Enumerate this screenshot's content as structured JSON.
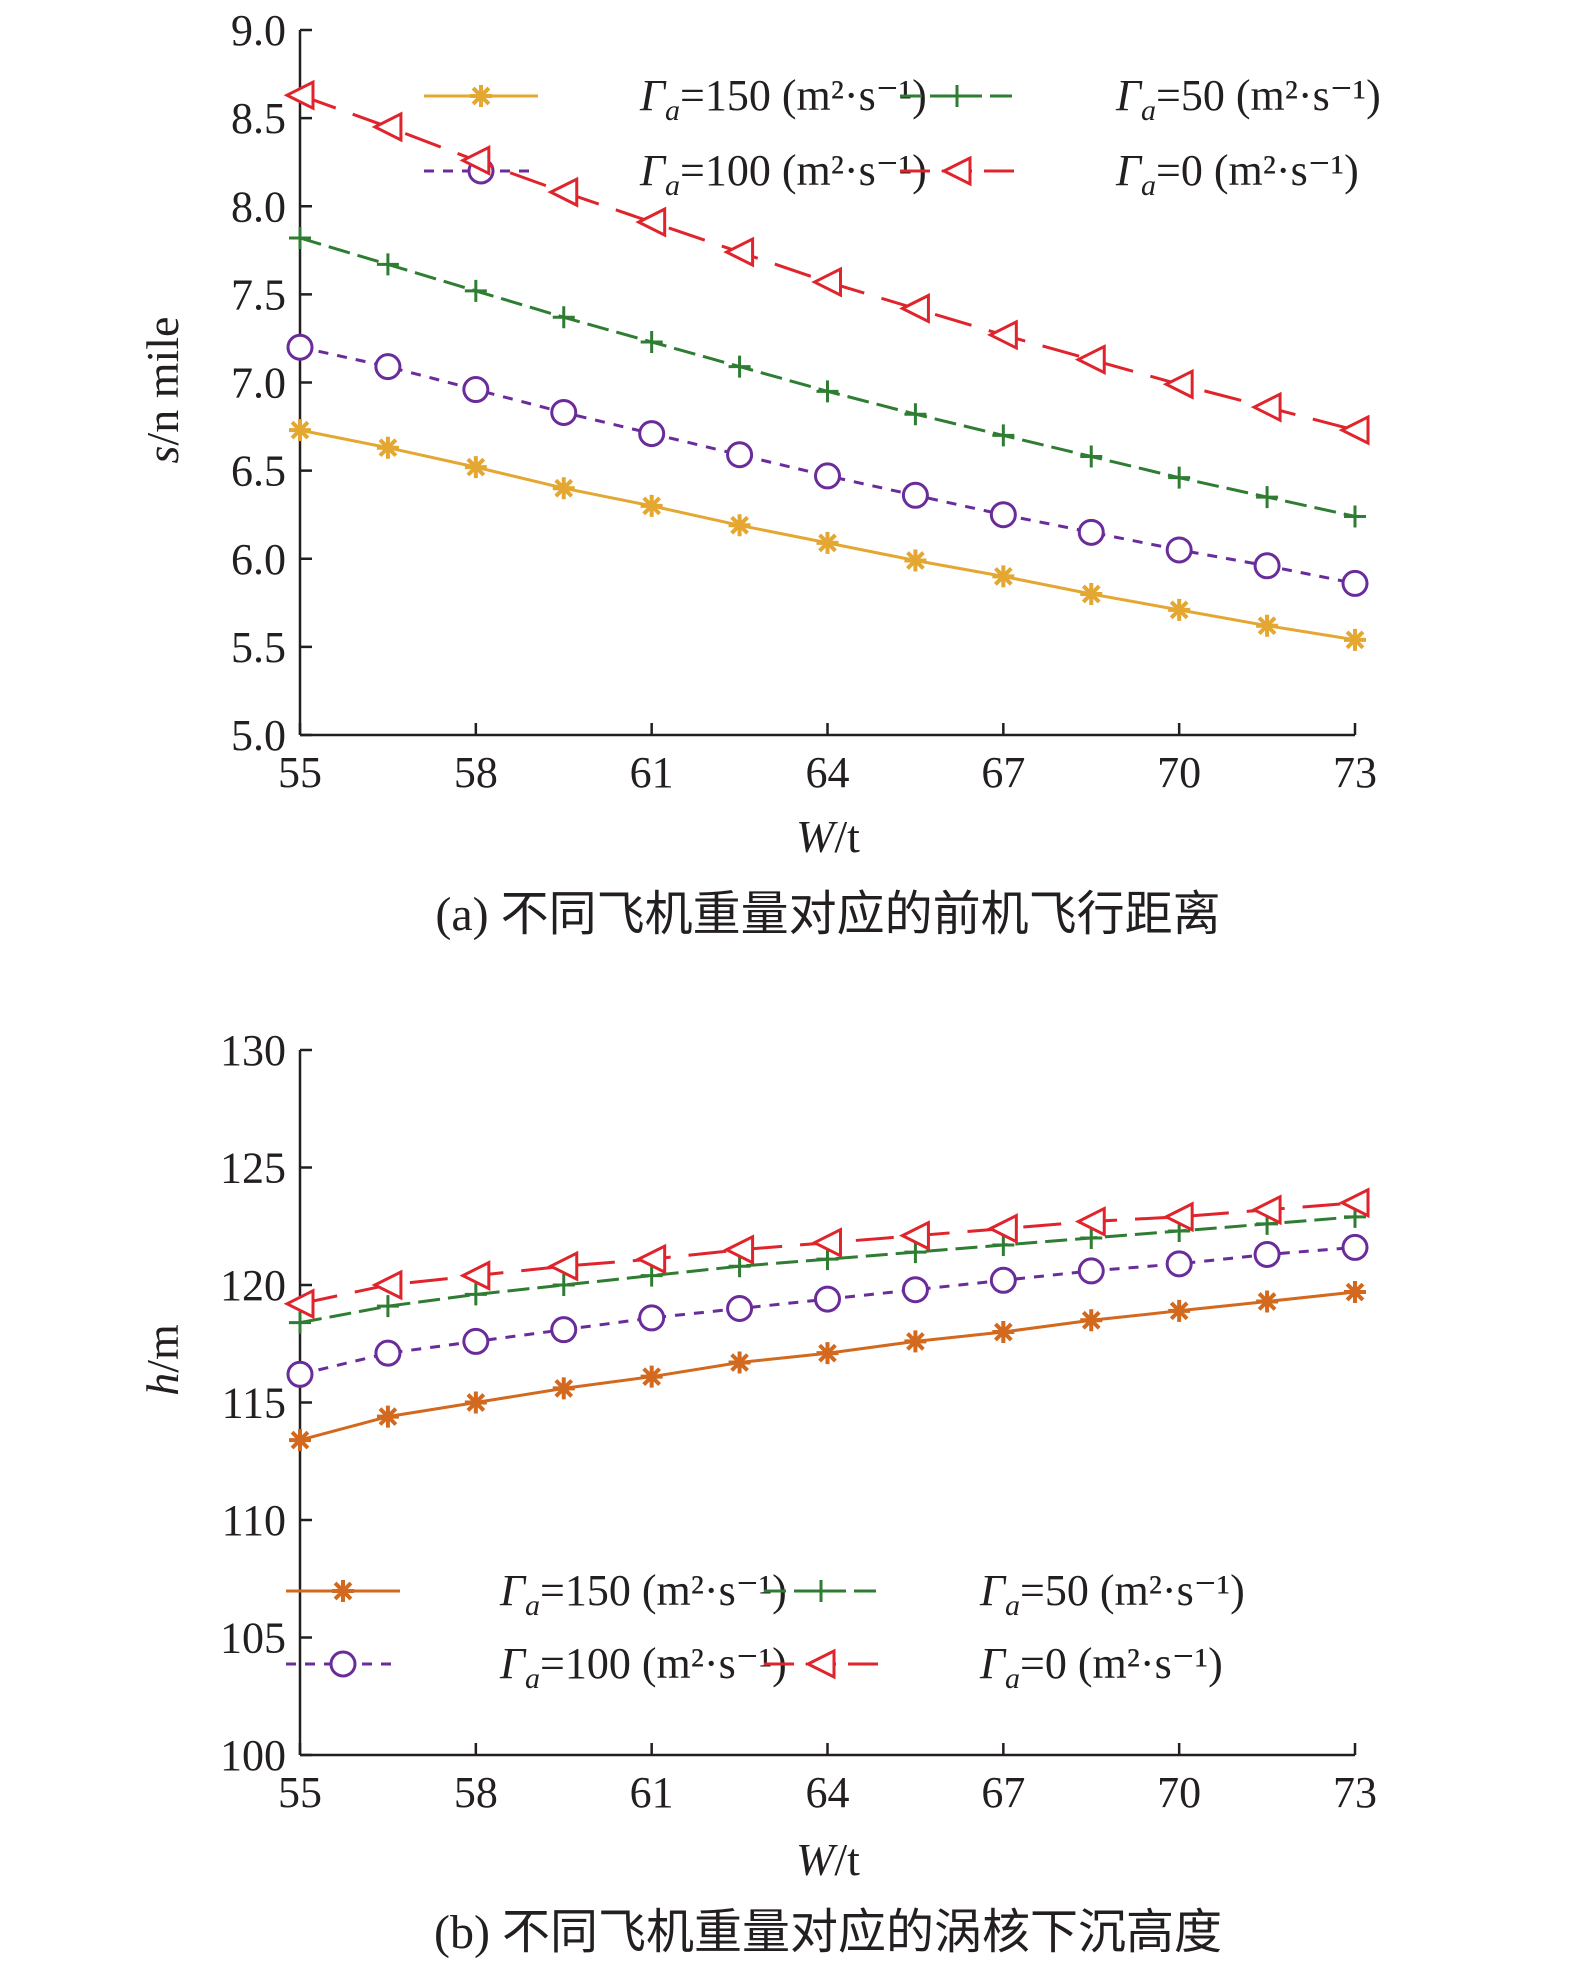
{
  "colors": {
    "s150": "#e3a732",
    "s150b": "#d2691e",
    "s50": "#2e7d32",
    "s100": "#6a2c9a",
    "s0": "#e0242b",
    "axis": "#231f20"
  },
  "chart_data": [
    {
      "type": "line",
      "caption": "(a) 不同飞机重量对应的前机飞行距离",
      "xlabel_italic": "W",
      "xlabel_unit": "/t",
      "ylabel_italic": "s",
      "ylabel_unit": "/n mile",
      "xlim": [
        55,
        73
      ],
      "ylim": [
        5.0,
        9.0
      ],
      "xticks": [
        "55",
        "58",
        "61",
        "64",
        "67",
        "70",
        "73"
      ],
      "yticks": [
        "5.0",
        "5.5",
        "6.0",
        "6.5",
        "7.0",
        "7.5",
        "8.0",
        "8.5",
        "9.0"
      ],
      "legend_position": "top-right",
      "x": [
        55,
        56.5,
        58,
        59.5,
        61,
        62.5,
        64,
        65.5,
        67,
        68.5,
        70,
        71.5,
        73
      ],
      "series": [
        {
          "name": "Γa=150 (m²·s⁻¹)",
          "values": [
            6.73,
            6.63,
            6.52,
            6.4,
            6.3,
            6.19,
            6.09,
            5.99,
            5.9,
            5.8,
            5.71,
            5.62,
            5.54
          ]
        },
        {
          "name": "Γa=50 (m²·s⁻¹)",
          "values": [
            7.82,
            7.67,
            7.52,
            7.37,
            7.23,
            7.09,
            6.95,
            6.82,
            6.7,
            6.58,
            6.46,
            6.35,
            6.24
          ]
        },
        {
          "name": "Γa=100 (m²·s⁻¹)",
          "values": [
            7.2,
            7.09,
            6.96,
            6.83,
            6.71,
            6.59,
            6.47,
            6.36,
            6.25,
            6.15,
            6.05,
            5.96,
            5.86
          ]
        },
        {
          "name": "Γa=0 (m²·s⁻¹)",
          "values": [
            8.63,
            8.45,
            8.26,
            8.08,
            7.91,
            7.74,
            7.57,
            7.42,
            7.27,
            7.13,
            6.99,
            6.86,
            6.73
          ]
        }
      ]
    },
    {
      "type": "line",
      "caption": "(b) 不同飞机重量对应的涡核下沉高度",
      "xlabel_italic": "W",
      "xlabel_unit": "/t",
      "ylabel_italic": "h",
      "ylabel_unit": "/m",
      "xlim": [
        55,
        73
      ],
      "ylim": [
        100,
        130
      ],
      "xticks": [
        "55",
        "58",
        "61",
        "64",
        "67",
        "70",
        "73"
      ],
      "yticks": [
        "100",
        "105",
        "110",
        "115",
        "120",
        "125",
        "130"
      ],
      "legend_position": "bottom-right",
      "x": [
        55,
        56.5,
        58,
        59.5,
        61,
        62.5,
        64,
        65.5,
        67,
        68.5,
        70,
        71.5,
        73
      ],
      "series": [
        {
          "name": "Γa=150 (m²·s⁻¹)",
          "values": [
            113.4,
            114.4,
            115.0,
            115.6,
            116.1,
            116.7,
            117.1,
            117.6,
            118.0,
            118.5,
            118.9,
            119.3,
            119.7
          ]
        },
        {
          "name": "Γa=50 (m²·s⁻¹)",
          "values": [
            118.4,
            119.1,
            119.6,
            120.0,
            120.4,
            120.8,
            121.1,
            121.4,
            121.7,
            122.0,
            122.3,
            122.6,
            122.9
          ]
        },
        {
          "name": "Γa=100 (m²·s⁻¹)",
          "values": [
            116.2,
            117.1,
            117.6,
            118.1,
            118.6,
            119.0,
            119.4,
            119.8,
            120.2,
            120.6,
            120.9,
            121.3,
            121.6
          ]
        },
        {
          "name": "Γa=0 (m²·s⁻¹)",
          "values": [
            119.2,
            120.0,
            120.4,
            120.8,
            121.1,
            121.5,
            121.8,
            122.1,
            122.4,
            122.7,
            122.9,
            123.2,
            123.5
          ]
        }
      ]
    }
  ]
}
